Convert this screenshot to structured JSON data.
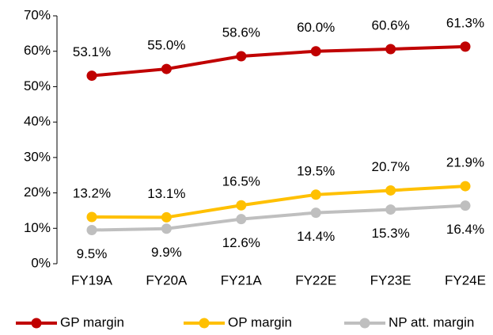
{
  "chart_data": {
    "type": "line",
    "categories": [
      "FY19A",
      "FY20A",
      "FY21A",
      "FY22E",
      "FY23E",
      "FY24E"
    ],
    "series": [
      {
        "name": "GP margin",
        "color": "#c00000",
        "values": [
          53.1,
          55.0,
          58.6,
          60.0,
          60.6,
          61.3
        ],
        "value_labels": [
          "53.1%",
          "55.0%",
          "58.6%",
          "60.0%",
          "60.6%",
          "61.3%"
        ]
      },
      {
        "name": "OP margin",
        "color": "#ffc000",
        "values": [
          13.2,
          13.1,
          16.5,
          19.5,
          20.7,
          21.9
        ],
        "value_labels": [
          "13.2%",
          "13.1%",
          "16.5%",
          "19.5%",
          "20.7%",
          "21.9%"
        ]
      },
      {
        "name": "NP att. margin",
        "color": "#bfbfbf",
        "values": [
          9.5,
          9.9,
          12.6,
          14.4,
          15.3,
          16.4
        ],
        "value_labels": [
          "9.5%",
          "9.9%",
          "12.6%",
          "14.4%",
          "15.3%",
          "16.4%"
        ]
      }
    ],
    "ylim": [
      0,
      70
    ],
    "yticks": [
      {
        "value": 0,
        "label": "0%"
      },
      {
        "value": 10,
        "label": "10%"
      },
      {
        "value": 20,
        "label": "20%"
      },
      {
        "value": 30,
        "label": "30%"
      },
      {
        "value": 40,
        "label": "40%"
      },
      {
        "value": 50,
        "label": "50%"
      },
      {
        "value": 60,
        "label": "60%"
      },
      {
        "value": 70,
        "label": "70%"
      }
    ],
    "grid": false,
    "legend": "bottom"
  }
}
